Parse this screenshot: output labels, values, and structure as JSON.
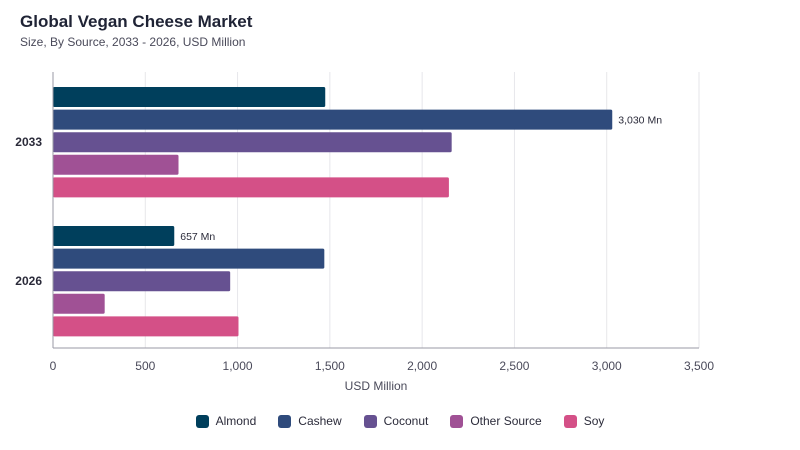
{
  "header": {
    "title": "Global Vegan Cheese Market",
    "subtitle": "Size, By Source, 2033 - 2026, USD Million"
  },
  "chart_data": {
    "type": "bar",
    "orientation": "horizontal",
    "title": "Global Vegan Cheese Market",
    "subtitle": "Size, By Source, 2033 - 2026, USD Million",
    "xlabel": "USD Million",
    "ylabel": "",
    "xlim": [
      0,
      3500
    ],
    "x_ticks": [
      0,
      500,
      1000,
      1500,
      2000,
      2500,
      3000,
      3500
    ],
    "x_tick_labels": [
      "0",
      "500",
      "1,000",
      "1,500",
      "2,000",
      "2,500",
      "3,000",
      "3,500"
    ],
    "categories": [
      "2033",
      "2026"
    ],
    "grid": "vertical",
    "legend_position": "bottom",
    "series": [
      {
        "name": "Almond",
        "color": "#003f5c",
        "values": [
          1475,
          657
        ]
      },
      {
        "name": "Cashew",
        "color": "#2f4b7c",
        "values": [
          3030,
          1470
        ]
      },
      {
        "name": "Coconut",
        "color": "#665191",
        "values": [
          2160,
          960
        ]
      },
      {
        "name": "Other Source",
        "color": "#a05195",
        "values": [
          680,
          280
        ]
      },
      {
        "name": "Soy",
        "color": "#d45087",
        "values": [
          2145,
          1005
        ]
      }
    ],
    "data_labels": [
      {
        "category": "2033",
        "series": "Cashew",
        "text": "3,030 Mn"
      },
      {
        "category": "2026",
        "series": "Almond",
        "text": "657 Mn"
      }
    ]
  }
}
